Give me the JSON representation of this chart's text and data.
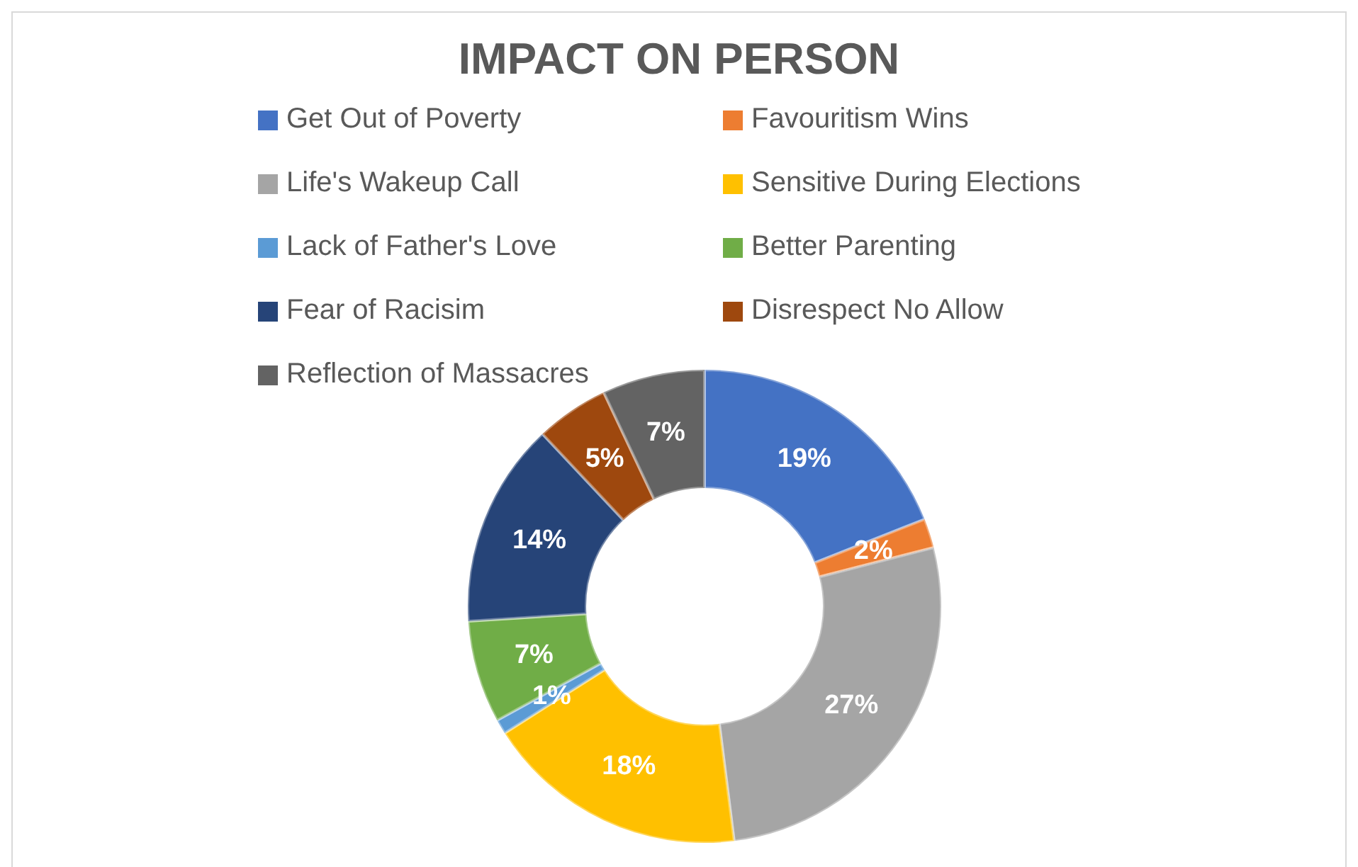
{
  "chart_data": {
    "type": "donut",
    "title": "IMPACT ON PERSON",
    "categories": [
      "Get Out of Poverty",
      "Favouritism Wins",
      "Life's Wakeup Call",
      "Sensitive During Elections",
      "Lack of Father's Love",
      "Better Parenting",
      "Fear of Racisim",
      "Disrespect No Allow",
      "Reflection of Massacres"
    ],
    "values": [
      19,
      2,
      27,
      18,
      1,
      7,
      14,
      5,
      7
    ],
    "colors": [
      "#4472c4",
      "#ed7d31",
      "#a5a5a5",
      "#ffc000",
      "#5b9bd5",
      "#70ad47",
      "#264478",
      "#9e480e",
      "#636363"
    ],
    "value_labels": [
      "19%",
      "2%",
      "27%",
      "18%",
      "1%",
      "7%",
      "14%",
      "5%",
      "7%"
    ],
    "legend": "top"
  }
}
